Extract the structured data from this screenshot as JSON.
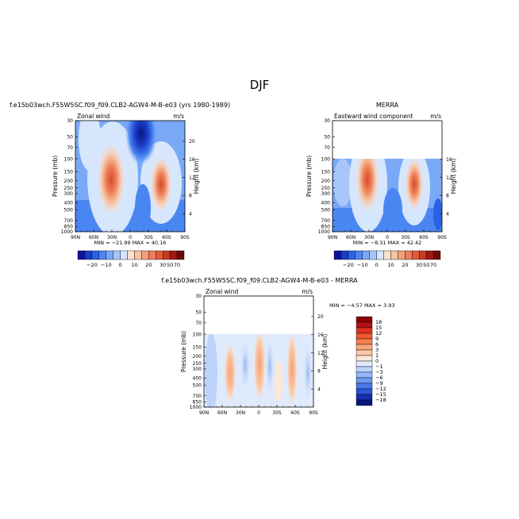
{
  "page_title": "DJF",
  "chart_data": [
    {
      "type": "heatmap",
      "title": "f.e15b03wch.F55W5SC.f09_f09.CLB2-AGW4-M-B-e03 (yrs 1980-1989)",
      "left_label": "Zonal wind",
      "right_label": "m/s",
      "ylabel": "Pressure (mb)",
      "ylabel_right": "Height (km)",
      "x_ticks": [
        "90N",
        "60N",
        "30N",
        "0",
        "30S",
        "60S",
        "90S"
      ],
      "y_ticks": [
        "30",
        "50",
        "70",
        "100",
        "150",
        "200",
        "250",
        "300",
        "400",
        "500",
        "700",
        "850",
        "1000"
      ],
      "y_ticks_right": [
        "20",
        "16",
        "12",
        "8",
        "4"
      ],
      "ylim": [
        1000,
        30
      ],
      "stats": "MIN = −21.99   MAX = 40.16",
      "colorbar_labels": [
        "−20",
        "−10",
        "0",
        "10",
        "20",
        "30",
        "50",
        "70"
      ],
      "features": [
        {
          "lat": 33,
          "p": 200,
          "value": 40.16
        },
        {
          "lat": -45,
          "p": 250,
          "value": 35
        },
        {
          "lat": -5,
          "p": 30,
          "value": -21.99
        }
      ]
    },
    {
      "type": "heatmap",
      "title": "MERRA",
      "left_label": "Eastward wind component",
      "right_label": "m/s",
      "ylabel": "Pressure (mb)",
      "ylabel_right": "Height (km)",
      "x_ticks": [
        "90N",
        "60N",
        "30N",
        "0",
        "30S",
        "60S",
        "90S"
      ],
      "y_ticks": [
        "30",
        "50",
        "70",
        "100",
        "150",
        "200",
        "250",
        "300",
        "400",
        "500",
        "700",
        "850",
        "1000"
      ],
      "y_ticks_right": [
        "16",
        "12",
        "8",
        "4"
      ],
      "ylim": [
        1000,
        30
      ],
      "stats": "MIN = −8.31   MAX = 42.42",
      "colorbar_labels": [
        "−20",
        "−10",
        "0",
        "10",
        "20",
        "30",
        "50",
        "70"
      ],
      "features": [
        {
          "lat": 30,
          "p": 200,
          "value": 42.42
        },
        {
          "lat": -45,
          "p": 250,
          "value": 35
        }
      ]
    },
    {
      "type": "heatmap",
      "title": "f.e15b03wch.F55W5SC.f09_f09.CLB2-AGW4-M-B-e03 - MERRA",
      "left_label": "Zonal wind",
      "right_label": "m/s",
      "ylabel": "Pressure (mb)",
      "ylabel_right": "Height (km)",
      "x_ticks": [
        "90N",
        "60N",
        "30N",
        "0",
        "30S",
        "60S",
        "90S"
      ],
      "y_ticks": [
        "30",
        "50",
        "70",
        "100",
        "150",
        "200",
        "250",
        "300",
        "400",
        "500",
        "700",
        "850",
        "1000"
      ],
      "y_ticks_right": [
        "20",
        "16",
        "12",
        "8",
        "4"
      ],
      "ylim": [
        1000,
        30
      ],
      "stats": "MIN = −4.57   MAX = 3.93",
      "colorbar_labels": [
        "18",
        "15",
        "12",
        "9",
        "6",
        "3",
        "1",
        "0",
        "−1",
        "−3",
        "−6",
        "−9",
        "−12",
        "−15",
        "−18"
      ]
    }
  ],
  "colors": {
    "plot1": [
      "#1010a0",
      "#1a3cc8",
      "#2a62e6",
      "#4a86f2",
      "#79a8f7",
      "#a9c6fb",
      "#d6e6fd",
      "#fbe3d0",
      "#f7c3a4",
      "#f3a07a",
      "#ec7d58",
      "#e15a38",
      "#c73a22",
      "#a01a10",
      "#700808"
    ],
    "diff": [
      "#8b0000",
      "#b31212",
      "#e03020",
      "#f05a2a",
      "#f58050",
      "#f8a57a",
      "#fac8a6",
      "#fde6d6",
      "#dfeafd",
      "#bcd3fa",
      "#94b7f6",
      "#6d98f0",
      "#4a78e8",
      "#2c55d8",
      "#1430b0",
      "#0a1680"
    ],
    "positive": "#e96a45",
    "negative": "#1e4bd0"
  }
}
